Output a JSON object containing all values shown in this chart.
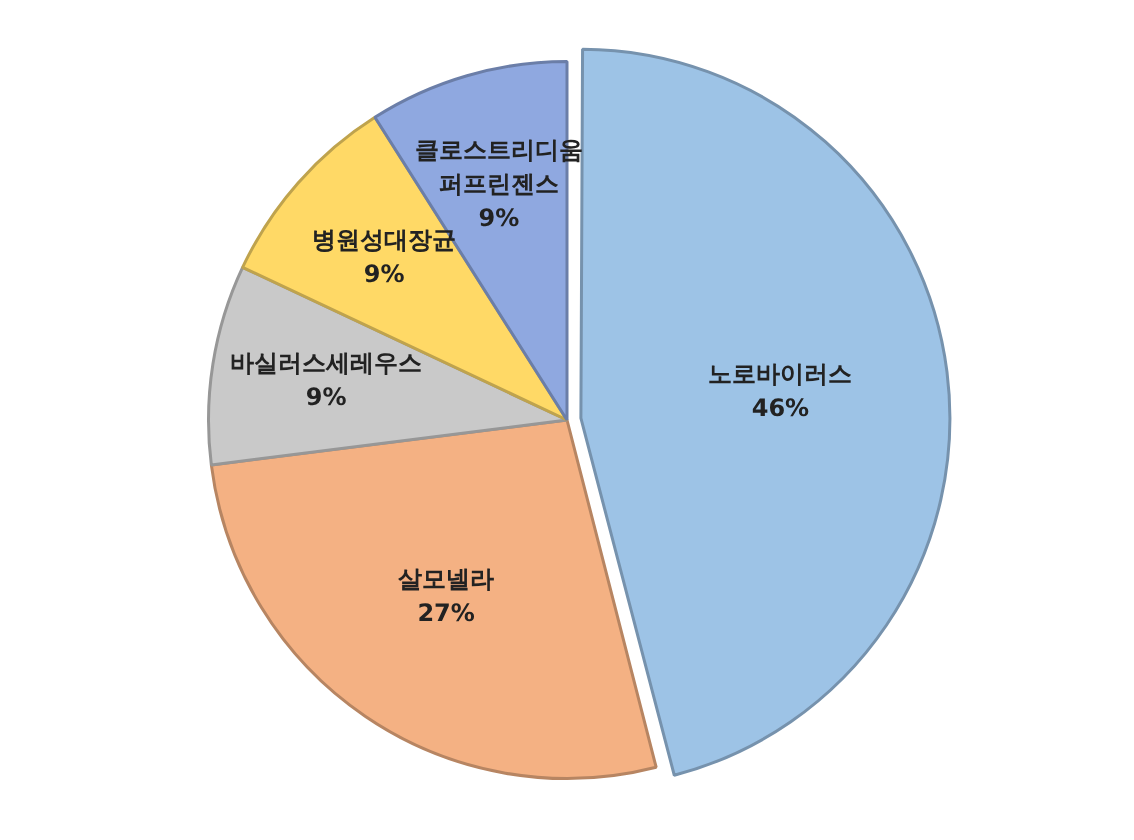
{
  "chart_data": {
    "type": "pie",
    "categories": [
      "노로바이러스",
      "살모넬라",
      "바실러스세레우스",
      "병원성대장균",
      "클로스트리디움 퍼프린젠스"
    ],
    "values": [
      46,
      27,
      9,
      9,
      9
    ],
    "colors": [
      "#9dc3e6",
      "#f4b183",
      "#c9c9c9",
      "#ffd966",
      "#8fa8e0"
    ],
    "value_labels": [
      "46%",
      "27%",
      "9%",
      "9%",
      "9%"
    ],
    "legend": false
  }
}
